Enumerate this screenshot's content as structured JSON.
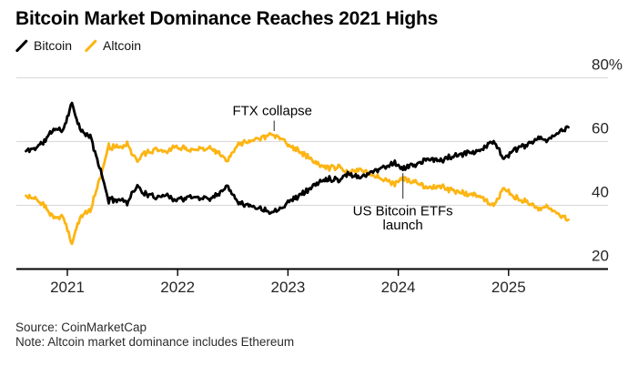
{
  "title": "Bitcoin Market Dominance Reaches 2021 Highs",
  "legend": [
    {
      "label": "Bitcoin",
      "color": "#000000"
    },
    {
      "label": "Altcoin",
      "color": "#FCB514"
    }
  ],
  "footer": {
    "source": "Source: CoinMarketCap",
    "note": "Note: Altcoin market dominance includes Ethereum"
  },
  "colors": {
    "bitcoin_line": "#000000",
    "altcoin_line": "#FCB514",
    "gridline": "#d8d8d8",
    "axis_line": "#000000",
    "tick_text": "#262626",
    "annotation_text": "#000000",
    "annotation_pointer": "#4a4a4a"
  },
  "chart_data": {
    "type": "line",
    "title": "Bitcoin Market Dominance Reaches 2021 Highs",
    "xlabel": "",
    "ylabel": "",
    "unit": "%",
    "ylim": [
      20,
      80
    ],
    "grid": "horizontal",
    "legend_position": "top-left",
    "y_ticks": [
      20,
      40,
      60,
      80
    ],
    "y_tick_labels": [
      "20",
      "40",
      "60",
      "80%"
    ],
    "x_ticks": [
      2021,
      2022,
      2023,
      2024,
      2025
    ],
    "x_tick_labels": [
      "2021",
      "2022",
      "2023",
      "2024",
      "2025"
    ],
    "x": [
      "2020-08",
      "2020-09",
      "2020-10",
      "2020-11",
      "2020-12",
      "2021-01",
      "2021-02",
      "2021-03",
      "2021-04",
      "2021-05",
      "2021-06",
      "2021-07",
      "2021-08",
      "2021-09",
      "2021-10",
      "2021-11",
      "2021-12",
      "2022-01",
      "2022-02",
      "2022-03",
      "2022-04",
      "2022-05",
      "2022-06",
      "2022-07",
      "2022-08",
      "2022-09",
      "2022-10",
      "2022-11",
      "2022-12",
      "2023-01",
      "2023-02",
      "2023-03",
      "2023-04",
      "2023-05",
      "2023-06",
      "2023-07",
      "2023-08",
      "2023-09",
      "2023-10",
      "2023-11",
      "2023-12",
      "2024-01",
      "2024-02",
      "2024-03",
      "2024-04",
      "2024-05",
      "2024-06",
      "2024-07",
      "2024-08",
      "2024-09",
      "2024-10",
      "2024-11",
      "2024-12",
      "2025-01",
      "2025-02",
      "2025-03",
      "2025-04",
      "2025-05",
      "2025-06",
      "2025-07"
    ],
    "series": [
      {
        "name": "Bitcoin",
        "color": "#000000",
        "values": [
          57,
          58,
          60,
          64,
          63.5,
          72,
          63,
          61.5,
          52,
          41.5,
          42,
          41,
          46,
          43.5,
          42.5,
          43.5,
          42,
          42,
          42.5,
          42.5,
          42,
          44,
          46,
          41.5,
          40,
          39.5,
          38.5,
          38,
          40,
          42,
          43.5,
          45.5,
          47.5,
          48.5,
          48,
          50,
          49,
          49.5,
          51,
          52,
          53.5,
          51.5,
          52.5,
          53.5,
          54.5,
          54,
          55,
          55.5,
          56.5,
          57,
          58.5,
          60,
          54.5,
          57,
          58.5,
          59.5,
          61,
          60.5,
          63,
          64.5
        ]
      },
      {
        "name": "Altcoin",
        "color": "#FCB514",
        "values": [
          43,
          42,
          40,
          36,
          36.5,
          28,
          37,
          38.5,
          48,
          58.5,
          58,
          59,
          54,
          56.5,
          57.5,
          56.5,
          58,
          58,
          57.5,
          57.5,
          58,
          56,
          54,
          58.5,
          60,
          60.5,
          61.5,
          62,
          60,
          58,
          56.5,
          54.5,
          52.5,
          51.5,
          52,
          50,
          51,
          50.5,
          49,
          48,
          46.5,
          48.5,
          47.5,
          46.5,
          45.5,
          46,
          45,
          44.5,
          43.5,
          43,
          41.5,
          40,
          45.5,
          43,
          41.5,
          40.5,
          39,
          39.5,
          37,
          35.5
        ]
      }
    ],
    "annotations": [
      {
        "text_lines": [
          "FTX collapse"
        ],
        "month": "2022-11",
        "series": "Altcoin",
        "value": 62,
        "position": "above"
      },
      {
        "text_lines": [
          "US Bitcoin ETFs",
          "launch"
        ],
        "month": "2024-01",
        "series": "Bitcoin",
        "value": 51.5,
        "position": "below"
      }
    ]
  }
}
